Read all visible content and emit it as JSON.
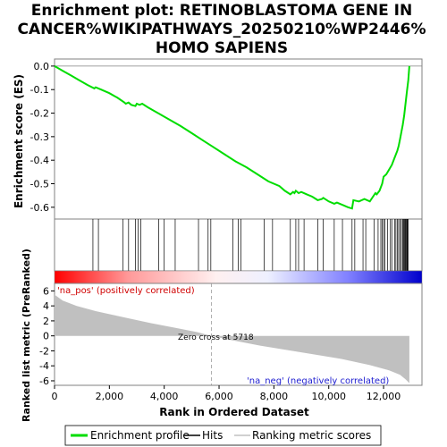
{
  "chart_data": {
    "type": "line",
    "title_lines": [
      "Enrichment plot: RETINOBLASTOMA GENE IN",
      "CANCER%WIKIPATHWAYS_20250210%WP2446%",
      "HOMO SAPIENS"
    ],
    "panels": {
      "es": {
        "ylabel": "Enrichment score (ES)",
        "ylim": [
          -0.65,
          0.03
        ],
        "yticks": [
          0.0,
          -0.1,
          -0.2,
          -0.3,
          -0.4,
          -0.5,
          -0.6
        ],
        "ytick_labels": [
          "0.0",
          "-0.1",
          "-0.2",
          "-0.3",
          "-0.4",
          "-0.5",
          "-0.6"
        ],
        "line_color": "#00dd00",
        "series": [
          {
            "x": [
              0,
              300,
              600,
              900,
              1200,
              1450,
              1500,
              1600,
              1700,
              2000,
              2300,
              2550,
              2600,
              2700,
              2800,
              2950,
              3000,
              3100,
              3200,
              3400,
              3700,
              4000,
              4300,
              4600,
              5000,
              5400,
              5800,
              6200,
              6600,
              7000,
              7400,
              7800,
              8200,
              8400,
              8600,
              8700,
              8750,
              8800,
              8900,
              9000,
              9200,
              9400,
              9600,
              9750,
              9800,
              10000,
              10200,
              10300,
              10500,
              10700,
              10850,
              10900,
              11100,
              11300,
              11500,
              11700,
              11750,
              11850,
              11950,
              12000,
              12100,
              12200,
              12300,
              12400,
              12500,
              12550,
              12600,
              12650,
              12700,
              12750,
              12800,
              12850,
              12900,
              12940
            ],
            "y": [
              0.0,
              -0.02,
              -0.04,
              -0.06,
              -0.08,
              -0.095,
              -0.09,
              -0.095,
              -0.1,
              -0.115,
              -0.135,
              -0.155,
              -0.16,
              -0.155,
              -0.165,
              -0.17,
              -0.16,
              -0.165,
              -0.16,
              -0.175,
              -0.195,
              -0.215,
              -0.235,
              -0.255,
              -0.285,
              -0.315,
              -0.345,
              -0.375,
              -0.405,
              -0.43,
              -0.46,
              -0.49,
              -0.51,
              -0.53,
              -0.545,
              -0.535,
              -0.54,
              -0.53,
              -0.54,
              -0.535,
              -0.545,
              -0.555,
              -0.57,
              -0.565,
              -0.56,
              -0.575,
              -0.585,
              -0.58,
              -0.59,
              -0.6,
              -0.605,
              -0.57,
              -0.575,
              -0.565,
              -0.575,
              -0.54,
              -0.545,
              -0.53,
              -0.5,
              -0.47,
              -0.46,
              -0.44,
              -0.42,
              -0.39,
              -0.36,
              -0.34,
              -0.31,
              -0.28,
              -0.25,
              -0.21,
              -0.16,
              -0.11,
              -0.06,
              0.0
            ]
          }
        ]
      },
      "hits": {
        "positions": [
          1400,
          1600,
          2500,
          2700,
          2950,
          3050,
          3150,
          3800,
          4000,
          4400,
          5250,
          5600,
          5700,
          6500,
          6700,
          6800,
          7650,
          7950,
          8600,
          8800,
          8900,
          9100,
          9600,
          9800,
          10200,
          10500,
          10850,
          10950,
          11250,
          11350,
          11650,
          11800,
          11900,
          11950,
          12000,
          12050,
          12150,
          12250,
          12300,
          12400,
          12450,
          12500,
          12550,
          12600,
          12650,
          12700,
          12720,
          12750,
          12780,
          12800,
          12830,
          12850,
          12870,
          12900
        ]
      },
      "ranked_metric": {
        "ylabel": "Ranked list metric (PreRanked)",
        "ylim": [
          -6.6,
          7.0
        ],
        "yticks": [
          6,
          4,
          2,
          0,
          -2,
          -4,
          -6
        ],
        "ytick_labels": [
          "6",
          "4",
          "2",
          "0",
          "-2",
          "-4",
          "-6"
        ],
        "xlabel": "Rank in Ordered Dataset",
        "xlim": [
          0,
          13400
        ],
        "xticks": [
          0,
          2000,
          4000,
          6000,
          8000,
          10000,
          12000
        ],
        "xtick_labels": [
          "0",
          "2,000",
          "4,000",
          "6,000",
          "8,000",
          "10,000",
          "12,000"
        ],
        "fill_color": "#c0c0c0",
        "series": [
          {
            "x": [
              0,
              300,
              800,
              1500,
              2500,
              3500,
              4500,
              5200,
              5718,
              6500,
              7500,
              8500,
              9500,
              10500,
              11500,
              12200,
              12600,
              12800,
              12940
            ],
            "y": [
              5.5,
              4.7,
              4.0,
              3.3,
              2.5,
              1.7,
              1.0,
              0.5,
              0.0,
              -0.6,
              -1.3,
              -1.9,
              -2.5,
              -3.1,
              -3.9,
              -4.6,
              -5.2,
              -5.8,
              -6.3
            ]
          }
        ],
        "zero_cross_label": "Zero cross at 5718",
        "zero_cross_rank": 5718,
        "pos_label": "'na_pos' (positively correlated)",
        "neg_label": "'na_neg' (negatively correlated)"
      }
    },
    "legend": {
      "placement": "bottom",
      "items": [
        {
          "label": "Enrichment profile",
          "color": "#00dd00"
        },
        {
          "label": "Hits",
          "color": "#000000"
        },
        {
          "label": "Ranking metric scores",
          "color": "#c0c0c0"
        }
      ]
    },
    "gradient_colors": [
      "#ff0000",
      "#ffffff",
      "#0000cc"
    ]
  }
}
